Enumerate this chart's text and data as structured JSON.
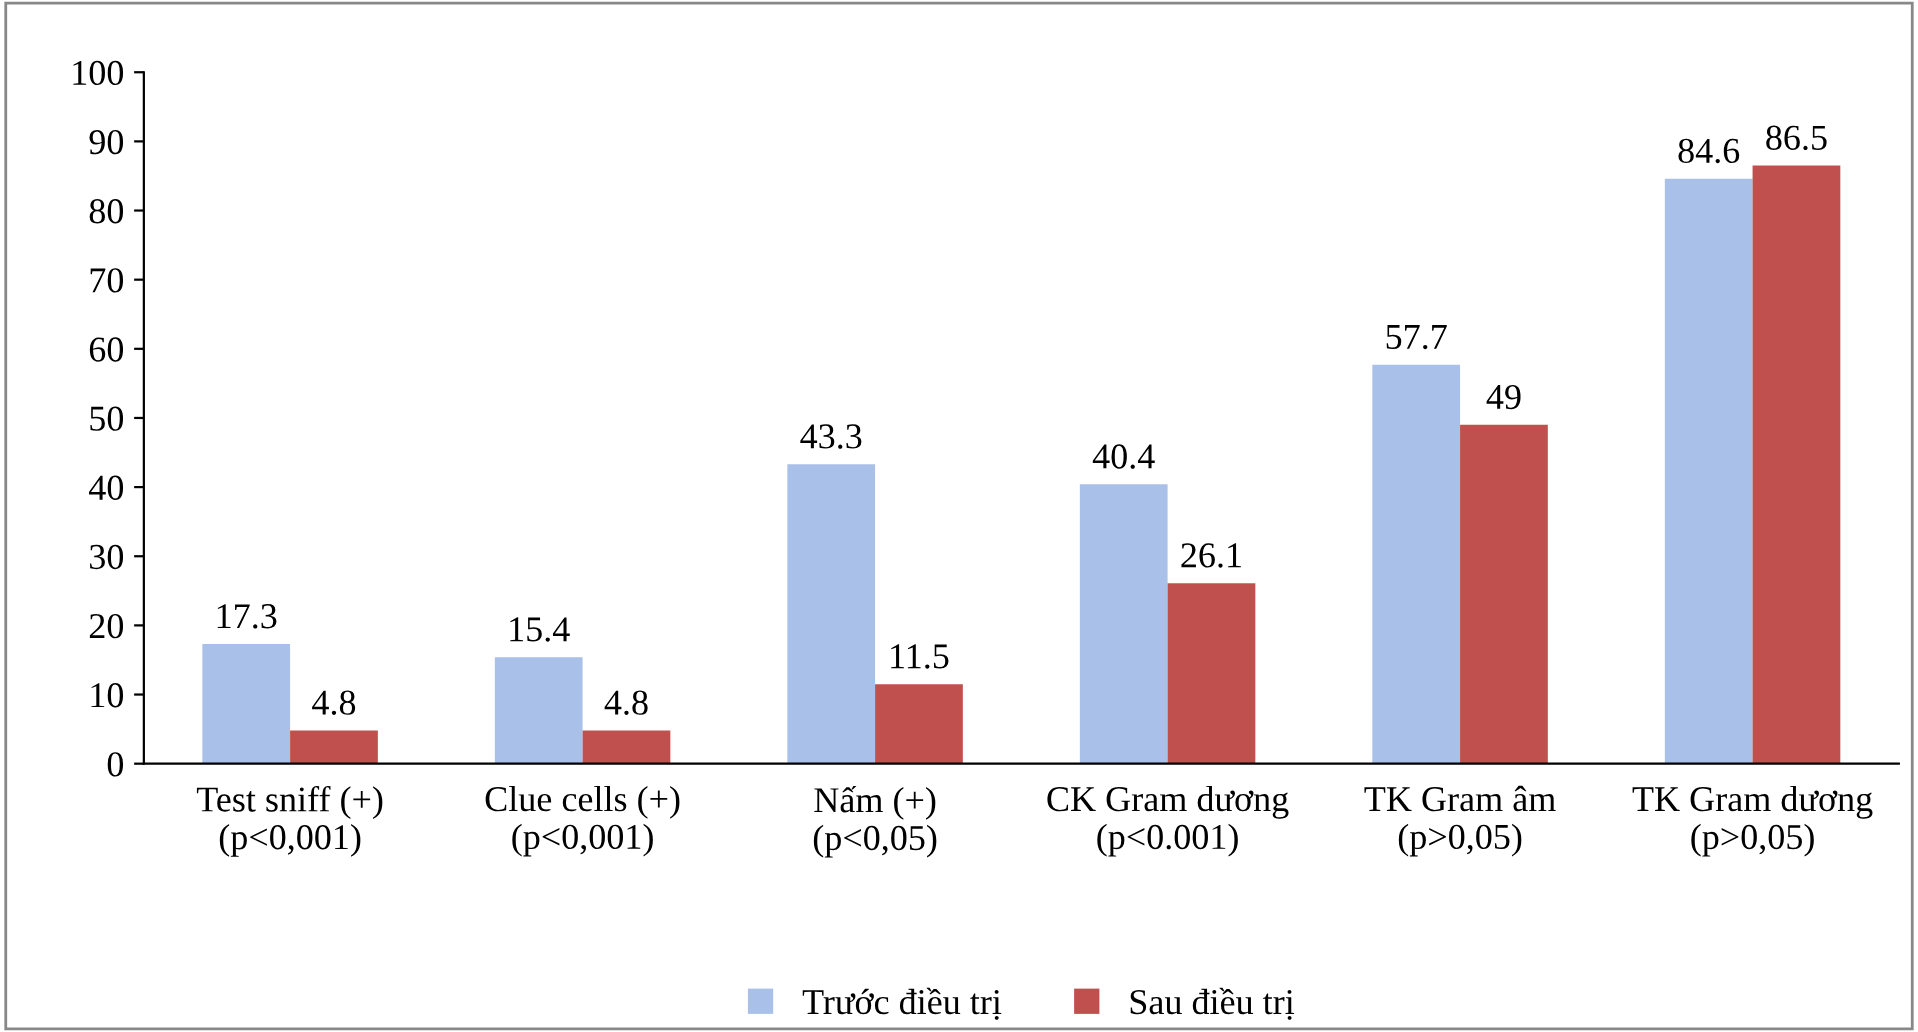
{
  "chart_data": {
    "type": "bar",
    "categories": [
      "Test sniff (+)\n(p<0,001)",
      "Clue cells (+)\n(p<0,001)",
      "Nấm (+)\n(p<0,05)",
      "CK Gram dương\n(p<0.001)",
      "TK Gram âm\n(p>0,05)",
      "TK Gram dương\n(p>0,05)"
    ],
    "series": [
      {
        "name": "Trước điều trị",
        "color": "#a9c1e9",
        "values": [
          17.3,
          15.4,
          43.3,
          40.4,
          57.7,
          84.6
        ]
      },
      {
        "name": "Sau điều trị",
        "color": "#c0504d",
        "values": [
          4.8,
          4.8,
          11.5,
          26.1,
          49,
          86.5
        ]
      }
    ],
    "ylim": [
      0,
      100
    ],
    "yticks": [
      0,
      10,
      20,
      30,
      40,
      50,
      60,
      70,
      80,
      90,
      100
    ],
    "data_labels": true,
    "legend": "bottom",
    "grid": false
  }
}
